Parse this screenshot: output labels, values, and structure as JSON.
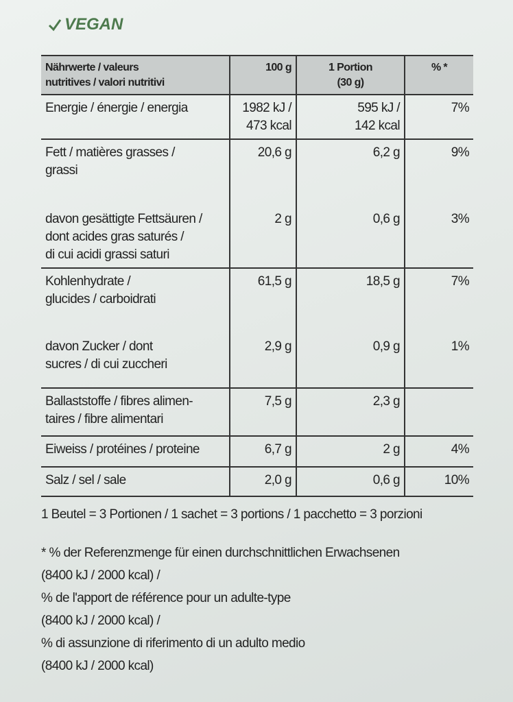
{
  "badge": "VEGAN",
  "table": {
    "header": [
      "Nährwerte / valeurs\nnutritives / valori nutritivi",
      "100 g",
      "1 Portion\n(30 g)",
      "% *"
    ],
    "groups": [
      {
        "rows": [
          [
            "Energie / énergie / energia",
            "1982 kJ /\n473 kcal",
            "595 kJ /\n142 kcal",
            "7%"
          ]
        ]
      },
      {
        "rows": [
          [
            "Fett / matières grasses /\ngrassi",
            "20,6 g",
            "6,2 g",
            "9%"
          ],
          [
            "davon gesättigte Fettsäuren /\ndont acides gras saturés /\ndi cui acidi grassi saturi",
            "2 g",
            "0,6 g",
            "3%"
          ]
        ]
      },
      {
        "rows": [
          [
            "Kohlenhydrate /\nglucides / carboidrati",
            "61,5 g",
            "18,5 g",
            "7%"
          ],
          [
            "davon Zucker / dont\nsucres / di cui zuccheri",
            "2,9 g",
            "0,9 g",
            "1%"
          ]
        ]
      },
      {
        "rows": [
          [
            "Ballaststoffe / fibres alimen-\ntaires / fibre alimentari",
            "7,5 g",
            "2,3 g",
            null
          ]
        ]
      },
      {
        "rows": [
          [
            "Eiweiss / protéines / proteine",
            "6,7 g",
            "2 g",
            "4%"
          ]
        ]
      },
      {
        "rows": [
          [
            "Salz / sel / sale",
            "2,0 g",
            "0,6 g",
            "10%"
          ]
        ]
      }
    ]
  },
  "portions": "1 Beutel = 3 Portionen / 1 sachet = 3 portions / 1 pacchetto = 3 porzioni",
  "footnote": [
    "* % der Referenzmenge für einen durchschnittlichen Erwachsenen",
    "(8400 kJ / 2000 kcal) /",
    "% de l'apport de référence pour un adulte-type",
    "(8400 kJ / 2000 kcal) /",
    "% di assunzione di riferimento di un adulto medio",
    "(8400 kJ / 2000 kcal)"
  ]
}
